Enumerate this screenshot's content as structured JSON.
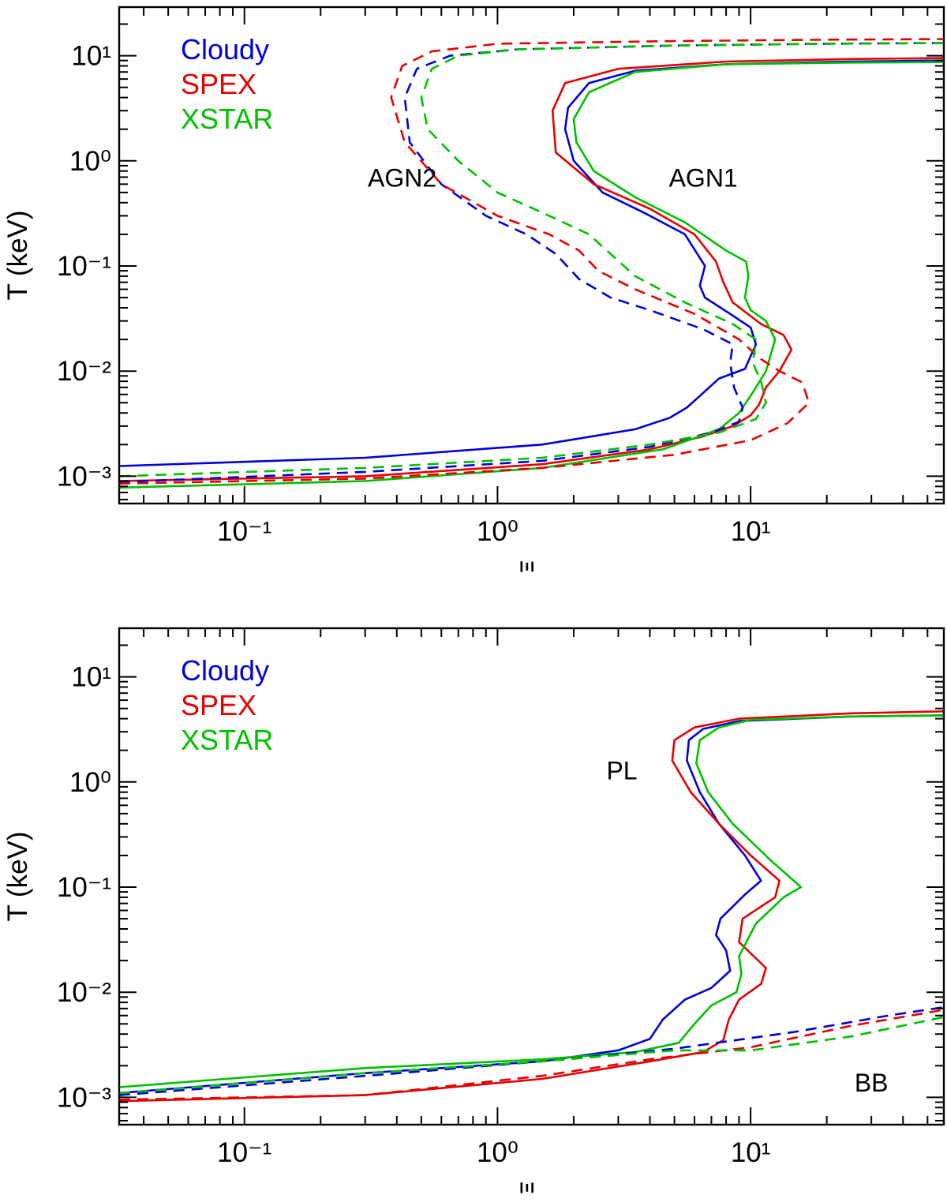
{
  "chart_data": [
    {
      "type": "line",
      "xlabel": "Ξ",
      "ylabel": "T (keV)",
      "xscale": "log",
      "yscale": "log",
      "xlim": [
        0.032,
        58
      ],
      "ylim": [
        0.00055,
        29
      ],
      "x_ticks": [
        {
          "value": 0.1,
          "label": "10⁻¹"
        },
        {
          "value": 1,
          "label": "10⁰"
        },
        {
          "value": 10,
          "label": "10¹"
        }
      ],
      "y_ticks": [
        {
          "value": 0.001,
          "label": "10⁻³"
        },
        {
          "value": 0.01,
          "label": "10⁻²"
        },
        {
          "value": 0.1,
          "label": "10⁻¹"
        },
        {
          "value": 1,
          "label": "10⁰"
        },
        {
          "value": 10,
          "label": "10¹"
        }
      ],
      "legend": [
        {
          "name": "Cloudy",
          "color": "#0000dd"
        },
        {
          "name": "SPEX",
          "color": "#e60000"
        },
        {
          "name": "XSTAR",
          "color": "#00c000"
        }
      ],
      "legend_position": "top-left",
      "annotations": [
        {
          "text": "AGN2",
          "x": 0.42,
          "y": 0.7
        },
        {
          "text": "AGN1",
          "x": 6.5,
          "y": 0.7
        }
      ],
      "series": [
        {
          "name": "Cloudy",
          "group": "AGN1",
          "style": "solid",
          "color": "#0000dd",
          "x": [
            0.032,
            0.3,
            1.5,
            3.5,
            4.8,
            5.6,
            6.3,
            7.5,
            9.5,
            10.5,
            10.0,
            8.3,
            6.6,
            6.3,
            6.6,
            5.5,
            3.8,
            2.6,
            2.0,
            1.85,
            1.9,
            2.3,
            3.5,
            8,
            25,
            58
          ],
          "y": [
            0.00125,
            0.0015,
            0.002,
            0.0028,
            0.0036,
            0.0045,
            0.0058,
            0.0085,
            0.0105,
            0.018,
            0.026,
            0.035,
            0.05,
            0.065,
            0.1,
            0.2,
            0.32,
            0.5,
            1.0,
            2.0,
            3.2,
            5.5,
            7.2,
            8.3,
            8.8,
            9.0
          ]
        },
        {
          "name": "SPEX",
          "group": "AGN1",
          "style": "solid",
          "color": "#e60000",
          "x": [
            0.032,
            0.3,
            1.5,
            4.0,
            6.5,
            8.5,
            10.0,
            10.8,
            11.5,
            13.0,
            14.5,
            13.5,
            11.0,
            8.5,
            7.8,
            7.3,
            6.0,
            4.0,
            2.4,
            1.7,
            1.65,
            1.85,
            3.0,
            8,
            25,
            58
          ],
          "y": [
            0.0009,
            0.001,
            0.0013,
            0.0018,
            0.0024,
            0.003,
            0.0038,
            0.0048,
            0.007,
            0.01,
            0.016,
            0.022,
            0.028,
            0.045,
            0.07,
            0.11,
            0.2,
            0.35,
            0.6,
            1.2,
            3.0,
            5.5,
            7.5,
            8.8,
            9.3,
            9.5
          ]
        },
        {
          "name": "XSTAR",
          "group": "AGN1",
          "style": "solid",
          "color": "#00c000",
          "x": [
            0.032,
            0.3,
            1.5,
            4.5,
            7.5,
            9.0,
            10.3,
            11.5,
            12.5,
            11.5,
            10.0,
            9.5,
            9.8,
            9.6,
            8.0,
            5.5,
            3.5,
            2.4,
            2.05,
            2.0,
            2.3,
            3.5,
            8,
            25,
            58
          ],
          "y": [
            0.00078,
            0.0009,
            0.0012,
            0.0018,
            0.0028,
            0.004,
            0.0065,
            0.01,
            0.02,
            0.03,
            0.038,
            0.05,
            0.08,
            0.11,
            0.14,
            0.26,
            0.45,
            0.8,
            1.5,
            2.5,
            4.5,
            7.0,
            8.3,
            8.6,
            8.7
          ]
        },
        {
          "name": "Cloudy",
          "group": "AGN2",
          "style": "dashed",
          "color": "#0000dd",
          "x": [
            0.032,
            0.3,
            1.5,
            4.0,
            7.0,
            9.0,
            9.3,
            8.6,
            8.3,
            8.5,
            6.5,
            4.0,
            2.8,
            2.1,
            1.7,
            1.3,
            0.9,
            0.6,
            0.45,
            0.43,
            0.48,
            0.65,
            1.2,
            5,
            20,
            58
          ],
          "y": [
            0.00088,
            0.0011,
            0.0014,
            0.0019,
            0.0026,
            0.0033,
            0.0045,
            0.007,
            0.012,
            0.018,
            0.025,
            0.038,
            0.05,
            0.075,
            0.13,
            0.2,
            0.3,
            0.6,
            1.5,
            4.0,
            7.5,
            10.0,
            11.5,
            12.5,
            13.0,
            13.2
          ]
        },
        {
          "name": "SPEX",
          "group": "AGN2",
          "style": "dashed",
          "color": "#e60000",
          "x": [
            0.032,
            0.3,
            1.5,
            5.0,
            10.0,
            14.0,
            17.0,
            16.0,
            13.0,
            11.0,
            9.0,
            6.0,
            3.5,
            2.5,
            2.1,
            1.6,
            1.0,
            0.6,
            0.43,
            0.38,
            0.42,
            0.55,
            1.0,
            5,
            20,
            58
          ],
          "y": [
            0.00085,
            0.00095,
            0.0012,
            0.0016,
            0.0022,
            0.0032,
            0.005,
            0.0078,
            0.01,
            0.013,
            0.02,
            0.035,
            0.06,
            0.09,
            0.14,
            0.2,
            0.3,
            0.6,
            1.5,
            4.0,
            8.0,
            11.0,
            13.0,
            13.8,
            14.2,
            14.4
          ]
        },
        {
          "name": "XSTAR",
          "group": "AGN2",
          "style": "dashed",
          "color": "#00c000",
          "x": [
            0.032,
            0.3,
            1.5,
            4.0,
            7.5,
            10.5,
            11.5,
            11.0,
            10.2,
            10.5,
            8.5,
            5.5,
            3.5,
            2.8,
            2.3,
            1.6,
            1.0,
            0.7,
            0.53,
            0.5,
            0.55,
            0.7,
            1.2,
            5,
            20,
            58
          ],
          "y": [
            0.001,
            0.0012,
            0.0015,
            0.002,
            0.0026,
            0.0035,
            0.005,
            0.008,
            0.012,
            0.02,
            0.028,
            0.045,
            0.08,
            0.13,
            0.2,
            0.3,
            0.5,
            1.0,
            2.0,
            4.0,
            7.5,
            10.0,
            11.5,
            12.5,
            13.0,
            13.2
          ]
        }
      ]
    },
    {
      "type": "line",
      "xlabel": "Ξ",
      "ylabel": "T (keV)",
      "xscale": "log",
      "yscale": "log",
      "xlim": [
        0.032,
        58
      ],
      "ylim": [
        0.00055,
        29
      ],
      "x_ticks": [
        {
          "value": 0.1,
          "label": "10⁻¹"
        },
        {
          "value": 1,
          "label": "10⁰"
        },
        {
          "value": 10,
          "label": "10¹"
        }
      ],
      "y_ticks": [
        {
          "value": 0.001,
          "label": "10⁻³"
        },
        {
          "value": 0.01,
          "label": "10⁻²"
        },
        {
          "value": 0.1,
          "label": "10⁻¹"
        },
        {
          "value": 1,
          "label": "10⁰"
        },
        {
          "value": 10,
          "label": "10¹"
        }
      ],
      "legend": [
        {
          "name": "Cloudy",
          "color": "#0000dd"
        },
        {
          "name": "SPEX",
          "color": "#e60000"
        },
        {
          "name": "XSTAR",
          "color": "#00c000"
        }
      ],
      "legend_position": "top-left",
      "annotations": [
        {
          "text": "PL",
          "x": 3.1,
          "y": 1.3
        },
        {
          "text": "BB",
          "x": 30,
          "y": 0.0014
        }
      ],
      "series": [
        {
          "name": "Cloudy",
          "group": "PL",
          "style": "solid",
          "color": "#0000dd",
          "x": [
            0.032,
            0.3,
            1.5,
            3.0,
            4.0,
            4.5,
            5.5,
            7.0,
            8.3,
            8.0,
            7.3,
            7.6,
            9.5,
            11.0,
            9.5,
            7.5,
            6.3,
            5.6,
            5.7,
            6.5,
            9,
            25,
            58
          ],
          "y": [
            0.0011,
            0.0017,
            0.0022,
            0.0028,
            0.0036,
            0.0055,
            0.0085,
            0.011,
            0.016,
            0.025,
            0.035,
            0.05,
            0.085,
            0.115,
            0.2,
            0.4,
            0.8,
            1.6,
            2.5,
            3.2,
            3.8,
            4.2,
            4.3
          ]
        },
        {
          "name": "SPEX",
          "group": "PL",
          "style": "solid",
          "color": "#e60000",
          "x": [
            0.032,
            0.3,
            1.5,
            4.0,
            6.5,
            7.8,
            8.2,
            9.0,
            11.0,
            11.5,
            9.0,
            9.3,
            12.5,
            13.0,
            10.0,
            7.5,
            5.8,
            4.9,
            5.0,
            6.0,
            9,
            25,
            58
          ],
          "y": [
            0.00092,
            0.00105,
            0.0015,
            0.0022,
            0.0027,
            0.0035,
            0.0055,
            0.0085,
            0.012,
            0.017,
            0.03,
            0.05,
            0.08,
            0.115,
            0.2,
            0.4,
            0.8,
            1.6,
            2.5,
            3.3,
            4.0,
            4.5,
            4.7
          ]
        },
        {
          "name": "XSTAR",
          "group": "PL",
          "style": "solid",
          "color": "#00c000",
          "x": [
            0.032,
            0.3,
            1.5,
            3.5,
            5.2,
            6.0,
            7.0,
            8.8,
            9.2,
            9.0,
            10.5,
            13.5,
            15.8,
            12.0,
            8.5,
            6.8,
            6.1,
            6.3,
            7.5,
            10,
            25,
            58
          ],
          "y": [
            0.00125,
            0.0019,
            0.0023,
            0.0027,
            0.0033,
            0.005,
            0.0075,
            0.01,
            0.015,
            0.022,
            0.045,
            0.08,
            0.1,
            0.18,
            0.4,
            0.8,
            1.5,
            2.5,
            3.3,
            3.9,
            4.2,
            4.3
          ]
        },
        {
          "name": "Cloudy",
          "group": "BB",
          "style": "dashed",
          "color": "#0000dd",
          "x": [
            0.032,
            0.3,
            1.5,
            5,
            15,
            35,
            58
          ],
          "y": [
            0.00105,
            0.0016,
            0.0022,
            0.0029,
            0.0042,
            0.006,
            0.0072
          ]
        },
        {
          "name": "SPEX",
          "group": "BB",
          "style": "dashed",
          "color": "#e60000",
          "x": [
            0.032,
            0.3,
            1.5,
            4,
            10,
            25,
            58
          ],
          "y": [
            0.00095,
            0.00105,
            0.0016,
            0.0023,
            0.003,
            0.0048,
            0.0068
          ]
        },
        {
          "name": "XSTAR",
          "group": "BB",
          "style": "dashed",
          "color": "#00c000",
          "x": [
            0.032,
            0.3,
            1.5,
            5,
            10,
            25,
            58
          ],
          "y": [
            0.0011,
            0.0017,
            0.0022,
            0.0028,
            0.0028,
            0.0038,
            0.0058
          ]
        }
      ]
    }
  ]
}
